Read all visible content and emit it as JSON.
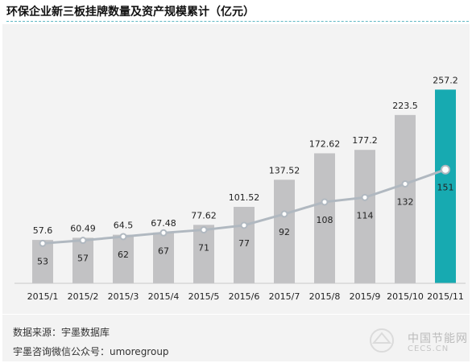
{
  "header": {
    "title": "环保企业新三板挂牌数量及资产规模累计（亿元）"
  },
  "footer": {
    "source": "数据来源：宇墨数据库",
    "wechat": "宇墨咨询微信公众号：umoregroup"
  },
  "watermark": {
    "text": "中国节能网",
    "sub": "CECS.CN"
  },
  "colors": {
    "bar": "#c2c2c4",
    "highlight_bar": "#17aab1",
    "line": "#b0b8c0",
    "background": "#f3f3f3"
  },
  "chart_data": {
    "type": "bar",
    "title": "环保企业新三板挂牌数量及资产规模累计（亿元）",
    "categories": [
      "2015/1",
      "2015/2",
      "2015/3",
      "2015/4",
      "2015/5",
      "2015/6",
      "2015/7",
      "2015/8",
      "2015/9",
      "2015/10",
      "2015/11"
    ],
    "series": [
      {
        "type": "bar",
        "values": [
          57.6,
          60.49,
          64.5,
          67.48,
          77.62,
          101.52,
          137.52,
          172.62,
          177.2,
          223.5,
          257.2
        ]
      },
      {
        "type": "line",
        "values": [
          53,
          57,
          62,
          67,
          71,
          77,
          92,
          108,
          114,
          132,
          151
        ]
      }
    ],
    "value_labels": {
      "bars": [
        "57.6",
        "60.49",
        "64.5",
        "67.48",
        "77.62",
        "101.52",
        "137.52",
        "172.62",
        "177.2",
        "223.5",
        "257.2"
      ],
      "line": [
        "53",
        "57",
        "62",
        "67",
        "71",
        "77",
        "92",
        "108",
        "114",
        "132",
        "151"
      ]
    },
    "highlight_index": 10,
    "ylim": [
      0,
      280
    ],
    "grid": false,
    "legend": "none"
  }
}
